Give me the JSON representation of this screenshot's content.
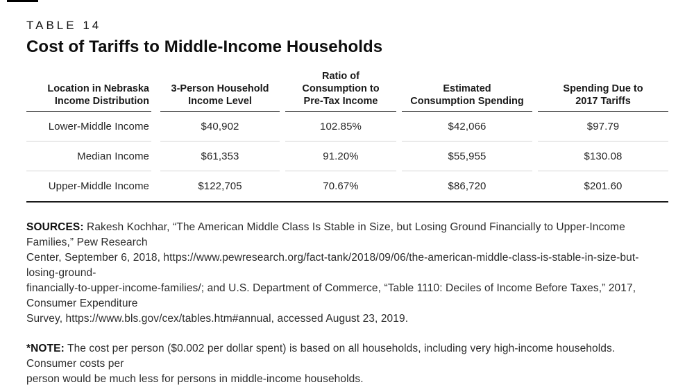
{
  "header": {
    "table_label": "TABLE 14",
    "title": "Cost of Tariffs to Middle-Income Households"
  },
  "table": {
    "header": [
      [
        "Location in Nebraska",
        "Income Distribution"
      ],
      [
        "3-Person Household",
        "Income Level"
      ],
      [
        "Ratio of",
        "Consumption to",
        "Pre-Tax Income"
      ],
      [
        "Estimated",
        "Consumption Spending"
      ],
      [
        "Spending Due to",
        "2017 Tariffs"
      ]
    ],
    "rows": [
      [
        "Lower-Middle Income",
        "$40,902",
        "102.85%",
        "$42,066",
        "$97.79"
      ],
      [
        "Median Income",
        "$61,353",
        "91.20%",
        "$55,955",
        "$130.08"
      ],
      [
        "Upper-Middle Income",
        "$122,705",
        "70.67%",
        "$86,720",
        "$201.60"
      ]
    ]
  },
  "sources": {
    "label": "SOURCES:",
    "lines": [
      "Rakesh Kochhar, “The American Middle Class Is Stable in Size, but Losing Ground Financially to Upper-Income Families,” Pew Research",
      "Center, September 6, 2018, https://www.pewresearch.org/fact-tank/2018/09/06/the-american-middle-class-is-stable-in-size-but-losing-ground-",
      "financially-to-upper-income-families/; and U.S. Department of Commerce, “Table 1110: Deciles of Income Before Taxes,” 2017, Consumer Expenditure",
      "Survey, https://www.bls.gov/cex/tables.htm#annual, accessed August 23, 2019."
    ]
  },
  "note": {
    "label": "*NOTE:",
    "lines": [
      "The cost per person ($0.002 per dollar spent) is based on all households, including very high-income households. Consumer costs per",
      "person would be much less for persons in middle-income households."
    ]
  },
  "colors": {
    "text": "#1f1f1f",
    "rule_dark": "#1a1a1a",
    "rule_light": "#d4d4d4"
  }
}
